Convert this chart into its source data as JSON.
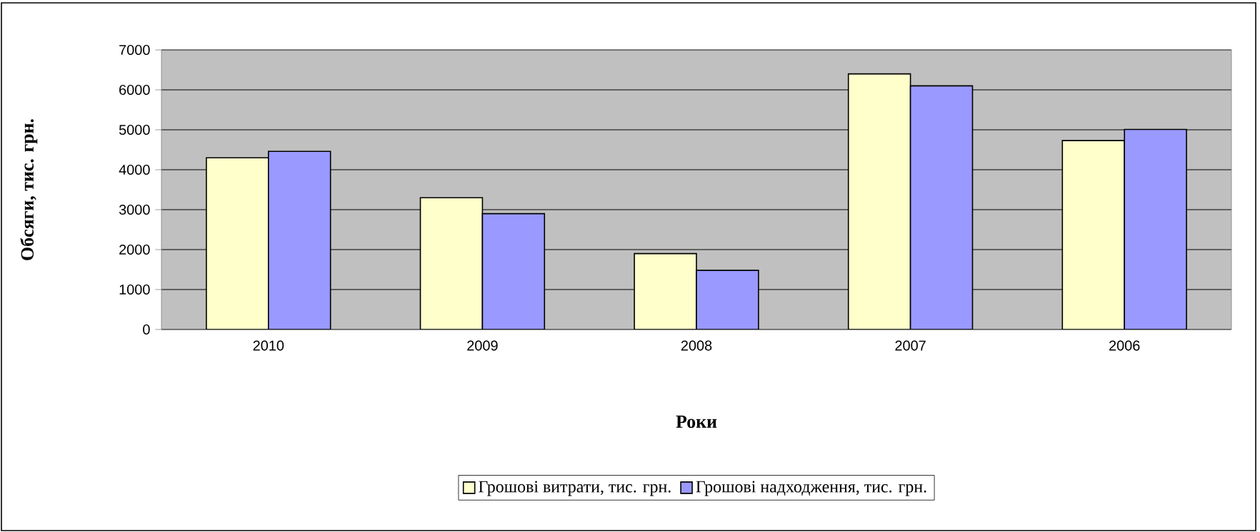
{
  "chart_data": {
    "type": "bar",
    "xlabel": "Роки",
    "ylabel": "Обсяги, тис. грн.",
    "categories": [
      "2010",
      "2009",
      "2008",
      "2007",
      "2006"
    ],
    "series": [
      {
        "name": "Грошові витрати, тис. грн.",
        "color": "#ffffcc",
        "values": [
          4300,
          3300,
          1900,
          6400,
          4730
        ]
      },
      {
        "name": "Грошові надходження, тис. грн.",
        "color": "#9999ff",
        "values": [
          4460,
          2900,
          1480,
          6100,
          5010
        ]
      }
    ],
    "ylim": [
      0,
      7000
    ],
    "yticks": [
      0,
      1000,
      2000,
      3000,
      4000,
      5000,
      6000,
      7000
    ],
    "grid": "y",
    "legend": "bottom"
  }
}
